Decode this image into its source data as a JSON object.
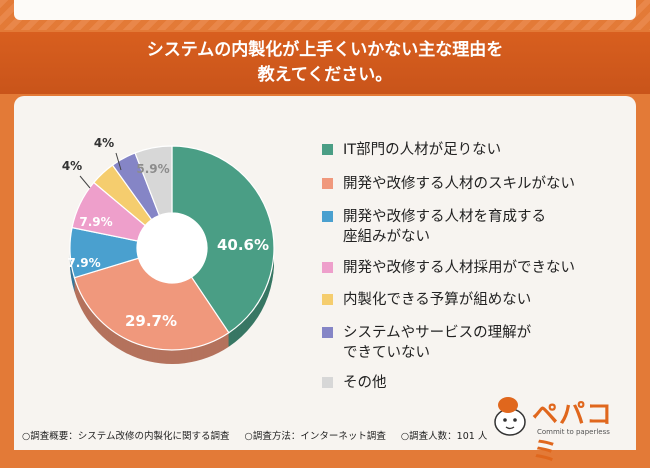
{
  "title": {
    "line1": "システムの内製化が上手くいかない主な理由を",
    "line2": "教えてください。"
  },
  "colors": {
    "background": "#e37a37",
    "title_band": "#d25a1d",
    "card": "#f7f4f0"
  },
  "chart_data": {
    "type": "pie",
    "donut": true,
    "slices": [
      {
        "label": "IT部門の人材が足りない",
        "value": 40.6,
        "value_label": "40.6%",
        "color": "#4a9e85"
      },
      {
        "label": "開発や改修する人材のスキルがない",
        "value": 29.7,
        "value_label": "29.7%",
        "color": "#f0987c"
      },
      {
        "label": "開発や改修する人材を育成する\n座組みがない",
        "value": 7.9,
        "value_label": "7.9%",
        "color": "#4aa0cf"
      },
      {
        "label": "開発や改修する人材採用ができない",
        "value": 7.9,
        "value_label": "7.9%",
        "color": "#ee9fcb"
      },
      {
        "label": "内製化できる予算が組めない",
        "value": 4.0,
        "value_label": "4%",
        "color": "#f5cd6e"
      },
      {
        "label": "システムやサービスの理解が\nできていない",
        "value": 4.0,
        "value_label": "4%",
        "color": "#8585c6"
      },
      {
        "label": "その他",
        "value": 5.9,
        "value_label": "5.9%",
        "color": "#d7d7d7"
      }
    ]
  },
  "footer": {
    "survey_outline": "○調査概要：システム改修の内製化に関する調査",
    "survey_method": "○調査方法：インターネット調査",
    "respondents": "○調査人数：101 人"
  },
  "brand": {
    "name": "ペパコミ",
    "tagline": "Commit to paperless"
  }
}
